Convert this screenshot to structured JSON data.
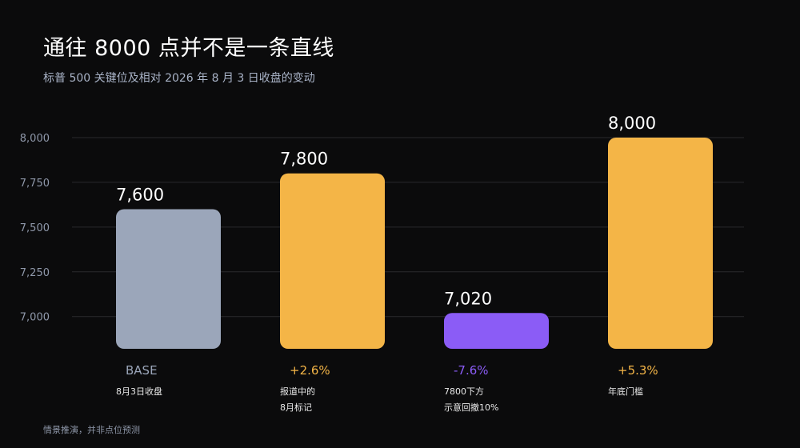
{
  "title": "通往 8000 点并不是一条直线",
  "subtitle": "标普 500 关键位及相对 2026 年 8 月 3 日收盘的变动",
  "footnote": "情景推演，并非点位预测",
  "colors": {
    "background": "#0b0b0c",
    "base_bar": "#9ba6ba",
    "gain_bar": "#f4b547",
    "drop_bar": "#8b5cf6",
    "grid": "#2a2a2c",
    "tick_text": "#8f98aa"
  },
  "chart_data": {
    "type": "bar",
    "ylim": [
      6820,
      8000
    ],
    "yticks": [
      7000,
      7250,
      7500,
      7750,
      8000
    ],
    "ytick_labels": [
      "7,000",
      "7,250",
      "7,500",
      "7,750",
      "8,000"
    ],
    "grid": true,
    "bars": [
      {
        "value": 7600,
        "label": "7,600",
        "change": "BASE",
        "kind": "base",
        "note": [
          "8月3日收盘"
        ]
      },
      {
        "value": 7800,
        "label": "7,800",
        "change": "+2.6%",
        "kind": "gain",
        "note": [
          "报道中的",
          "8月标记"
        ]
      },
      {
        "value": 7020,
        "label": "7,020",
        "change": "-7.6%",
        "kind": "drop",
        "note": [
          "7800下方",
          "示意回撤10%"
        ]
      },
      {
        "value": 8000,
        "label": "8,000",
        "change": "+5.3%",
        "kind": "gain",
        "note": [
          "年底门槛"
        ]
      }
    ]
  }
}
